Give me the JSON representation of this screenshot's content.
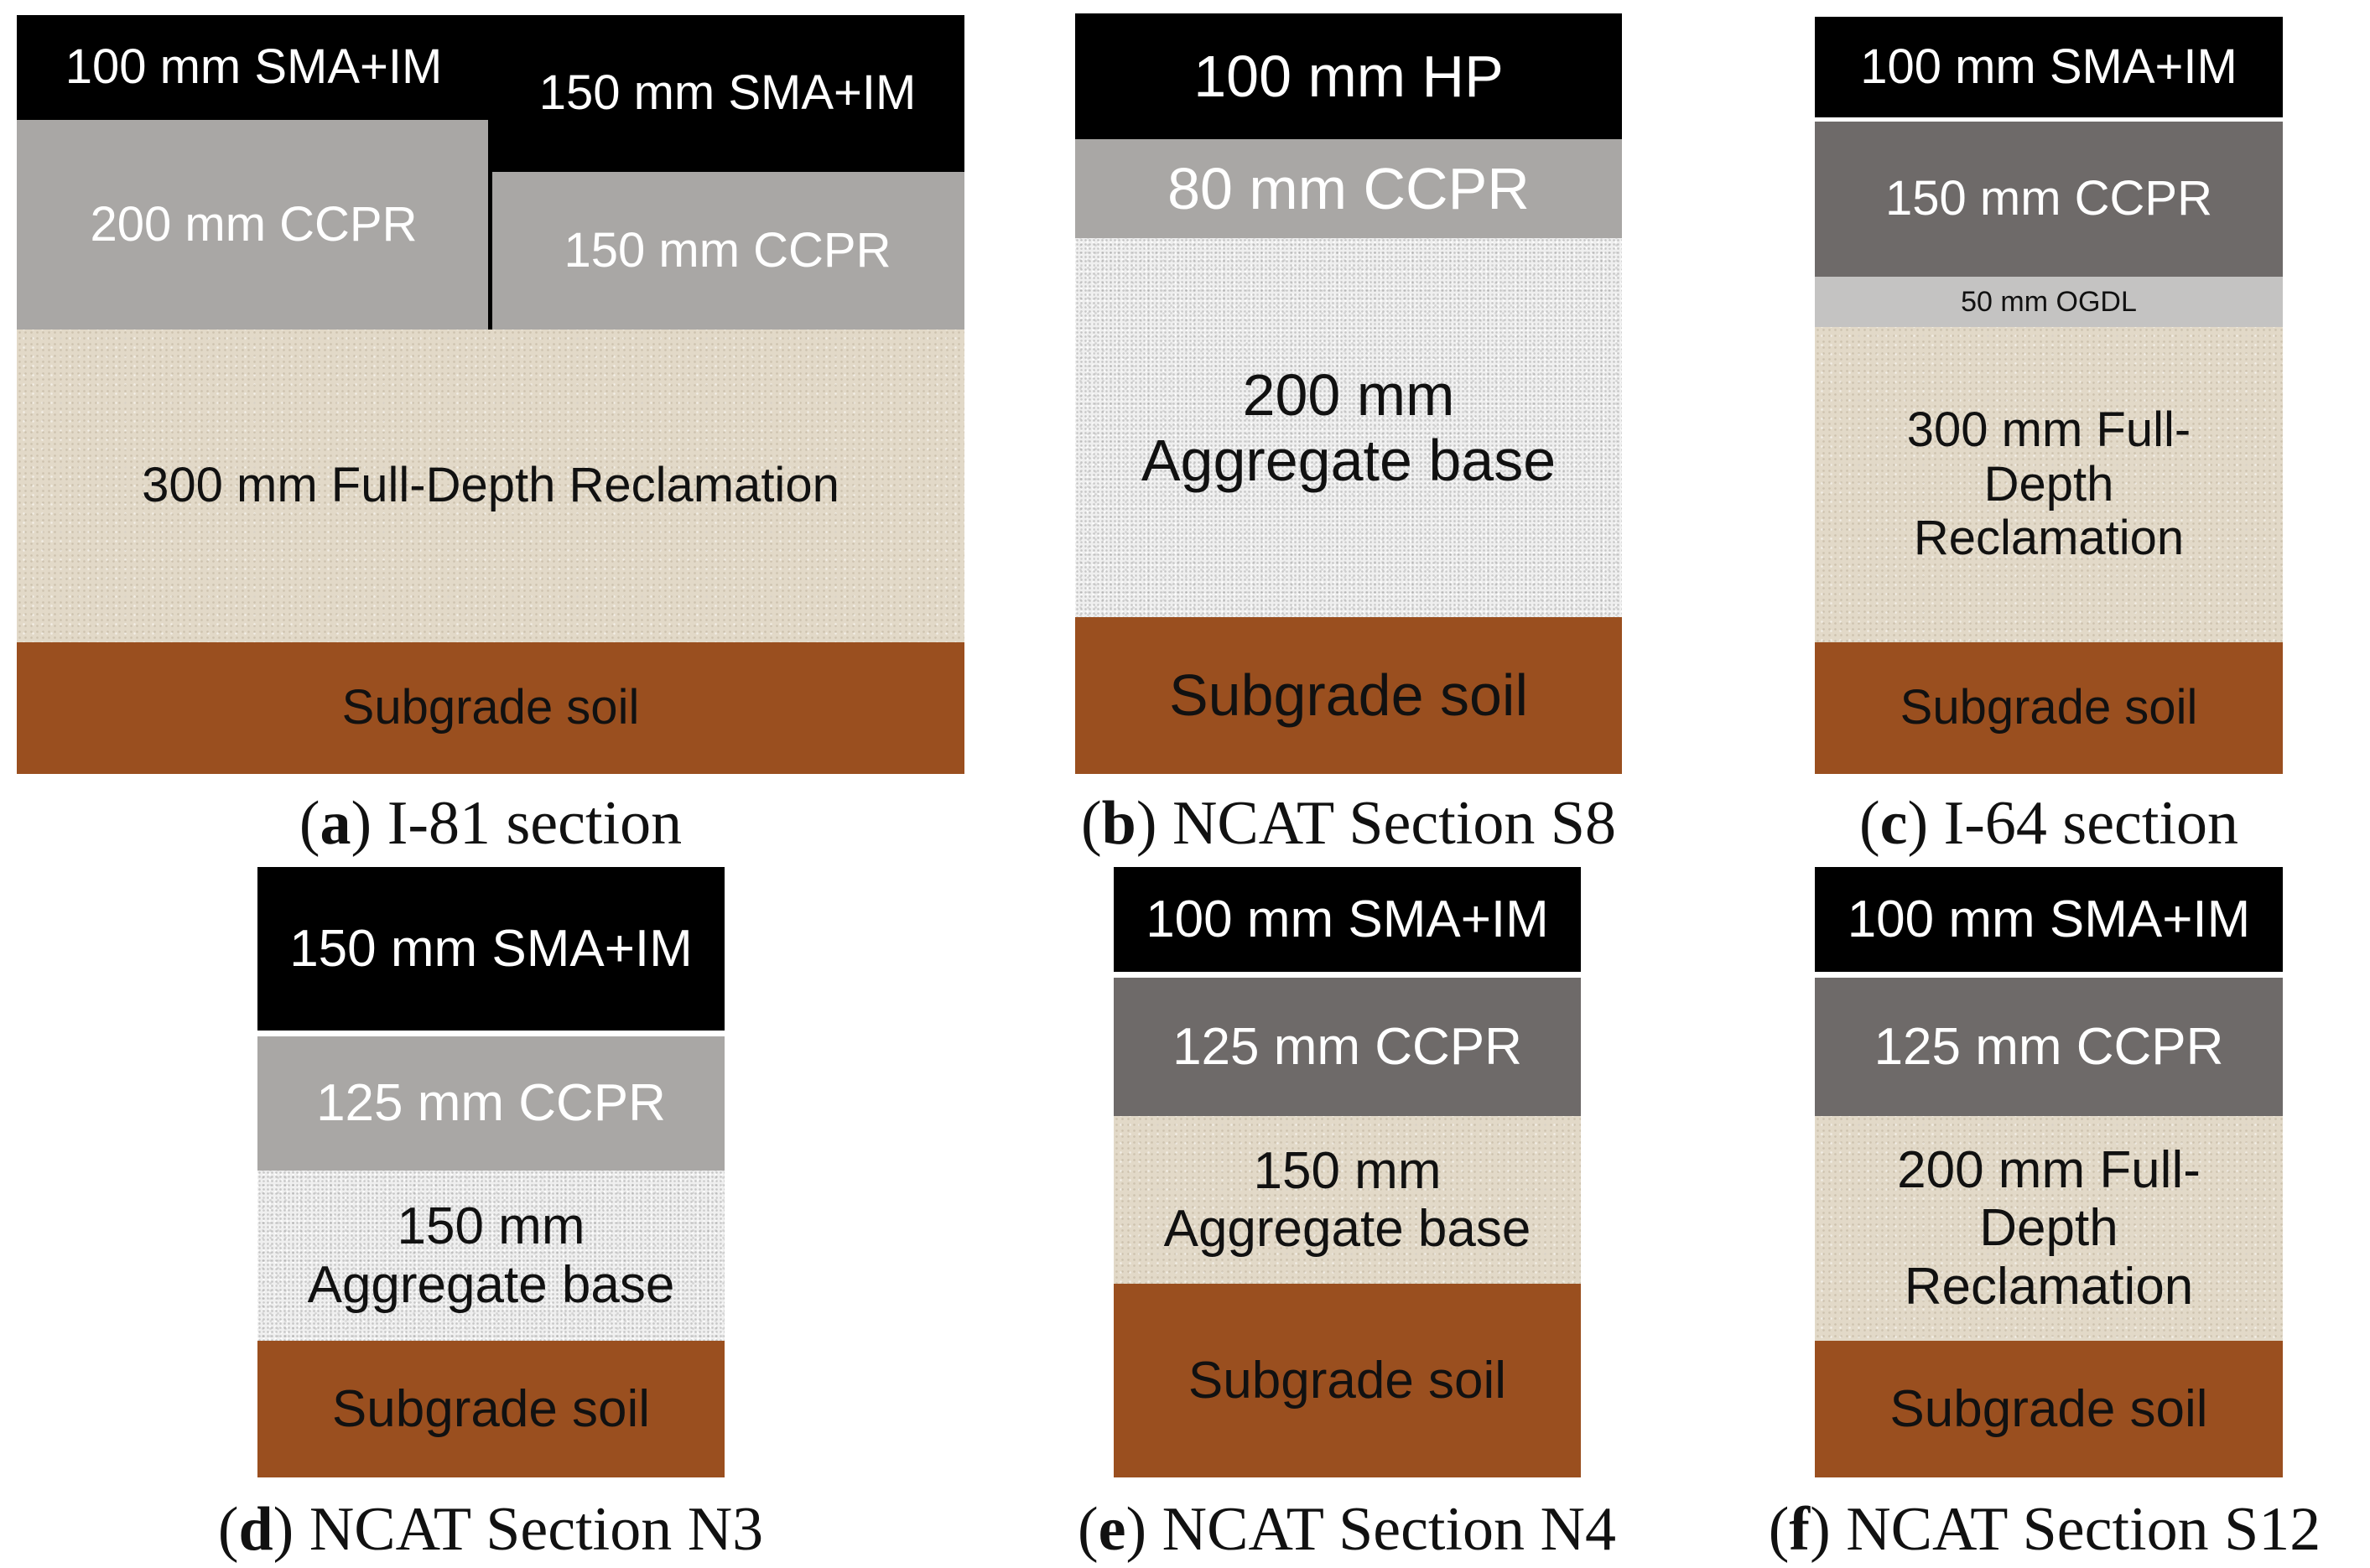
{
  "panels": {
    "a": {
      "letter": "a",
      "caption": "I-81 section",
      "layers": {
        "sma_left": "100 mm SMA+IM",
        "sma_right": "150 mm SMA+IM",
        "ccpr_left": "200 mm CCPR",
        "ccpr_right": "150 mm CCPR",
        "fdr": "300 mm Full-Depth Reclamation",
        "soil": "Subgrade soil"
      }
    },
    "b": {
      "letter": "b",
      "caption": "NCAT Section S8",
      "layers": {
        "hp": "100 mm HP",
        "ccpr": "80 mm CCPR",
        "base": "200 mm\nAggregate base",
        "soil": "Subgrade soil"
      }
    },
    "c": {
      "letter": "c",
      "caption": "I-64 section",
      "layers": {
        "sma": "100 mm SMA+IM",
        "ccpr": "150 mm CCPR",
        "ogdl": "50 mm OGDL",
        "fdr": "300 mm Full-\nDepth\nReclamation",
        "soil": "Subgrade soil"
      }
    },
    "d": {
      "letter": "d",
      "caption": "NCAT Section N3",
      "layers": {
        "sma": "150 mm SMA+IM",
        "ccpr": "125 mm CCPR",
        "base": "150 mm\nAggregate base",
        "soil": "Subgrade soil"
      }
    },
    "e": {
      "letter": "e",
      "caption": "NCAT Section N4",
      "layers": {
        "sma": "100 mm SMA+IM",
        "ccpr": "125 mm CCPR",
        "base": "150 mm\nAggregate base",
        "soil": "Subgrade soil"
      }
    },
    "f": {
      "letter": "f",
      "caption": "NCAT Section S12",
      "layers": {
        "sma": "100 mm SMA+IM",
        "ccpr": "125 mm CCPR",
        "fdr": "200 mm Full-\nDepth\nReclamation",
        "soil": "Subgrade soil"
      }
    }
  },
  "colors": {
    "sma": "#000000",
    "ccpr_light": "#a9a7a5",
    "ccpr_dark": "#6e6a69",
    "ogdl": "#c4c3c2",
    "fdr": "#e2d9c8",
    "aggregate_base": "#efefef",
    "subgrade_soil": "#9a4f1f"
  }
}
